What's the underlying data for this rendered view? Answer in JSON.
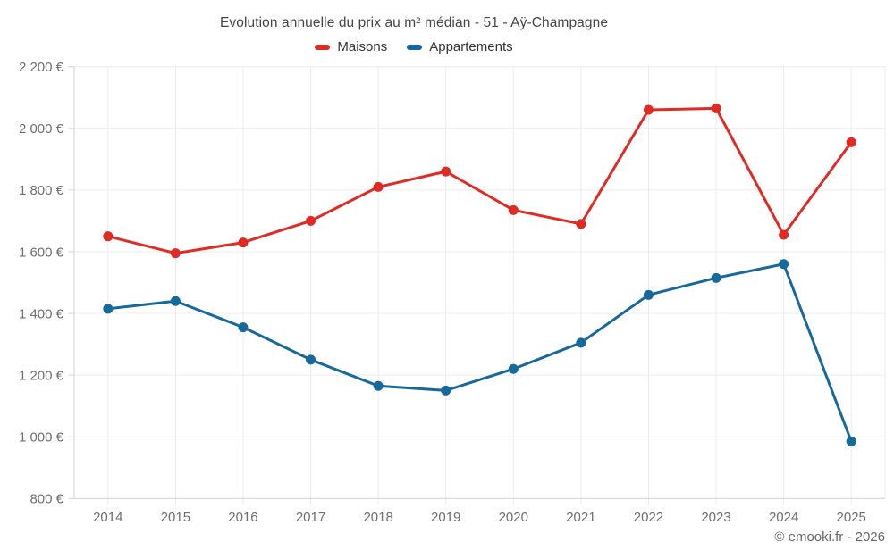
{
  "footer": "© emooki.fr - 2026",
  "colors": {
    "background": "#ffffff",
    "grid": "#ececec",
    "axis": "#d2d2d2",
    "title_text": "#454545",
    "legend_text": "#333333",
    "axis_text": "#6e6e6e",
    "footer_text": "#666666",
    "maisons": "#e02b24",
    "appartements": "#17699c"
  },
  "chart_data": {
    "type": "line",
    "title": "Evolution annuelle du prix au m² médian - 51 - Aÿ-Champagne",
    "categories": [
      "2014",
      "2015",
      "2016",
      "2017",
      "2018",
      "2019",
      "2020",
      "2021",
      "2022",
      "2023",
      "2024",
      "2025"
    ],
    "series": [
      {
        "name": "Maisons",
        "color": "#e02b24",
        "values": [
          1650,
          1595,
          1630,
          1700,
          1810,
          1860,
          1735,
          1690,
          2060,
          2065,
          1655,
          1955
        ]
      },
      {
        "name": "Appartements",
        "color": "#17699c",
        "values": [
          1415,
          1440,
          1355,
          1250,
          1165,
          1150,
          1220,
          1305,
          1460,
          1515,
          1560,
          985
        ]
      }
    ],
    "xlabel": "",
    "ylabel": "",
    "ylim": [
      800,
      2200
    ],
    "y_tick_step": 200,
    "y_tick_labels": [
      "800 €",
      "1 000 €",
      "1 200 €",
      "1 400 €",
      "1 600 €",
      "1 800 €",
      "2 000 €",
      "2 200 €"
    ],
    "grid": true,
    "legend_position": "top",
    "marker": "circle"
  }
}
